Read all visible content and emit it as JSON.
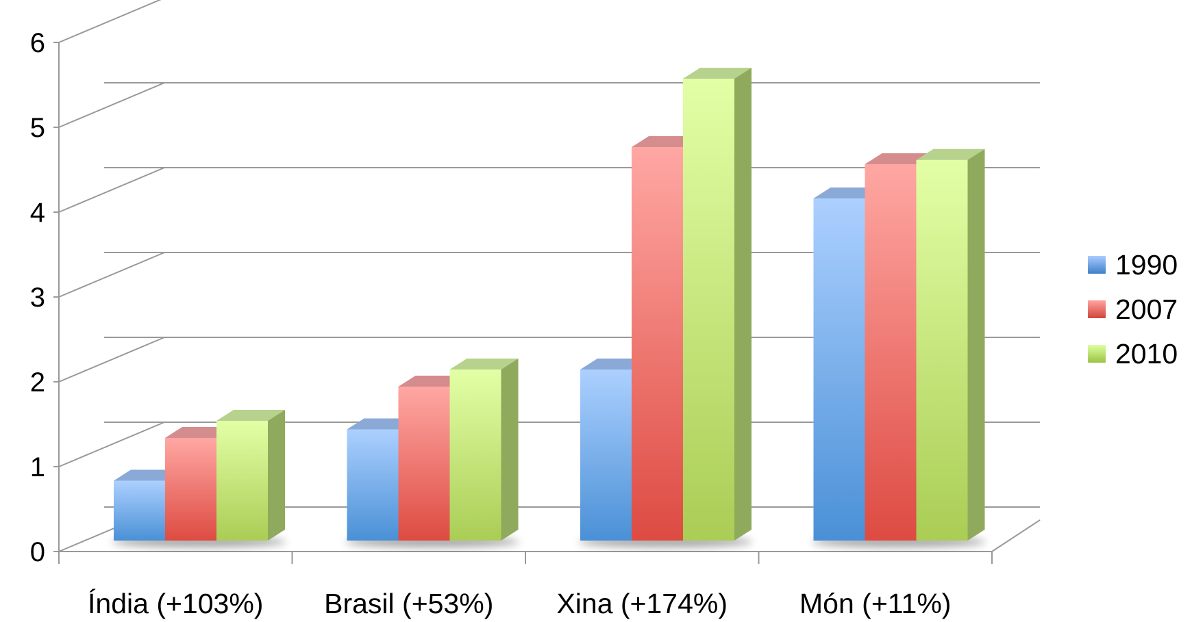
{
  "chart_data": {
    "type": "bar",
    "categories": [
      "Índia (+103%)",
      "Brasil (+53%)",
      "Xina (+174%)",
      "Món (+11%)"
    ],
    "series": [
      {
        "name": "1990",
        "values": [
          0.7,
          1.3,
          2.0,
          4.0
        ],
        "color": "#5b9bd5"
      },
      {
        "name": "2007",
        "values": [
          1.2,
          1.8,
          4.6,
          4.4
        ],
        "color": "#e8605a"
      },
      {
        "name": "2010",
        "values": [
          1.4,
          2.0,
          5.4,
          4.45
        ],
        "color": "#b5d65f"
      }
    ],
    "yticks": [
      "0",
      "1",
      "2",
      "3",
      "4",
      "5",
      "6"
    ],
    "ylim": [
      0,
      6
    ],
    "title": "",
    "xlabel": "",
    "ylabel": "",
    "grid": true,
    "style": "3d-clustered-column",
    "legend_position": "right"
  }
}
